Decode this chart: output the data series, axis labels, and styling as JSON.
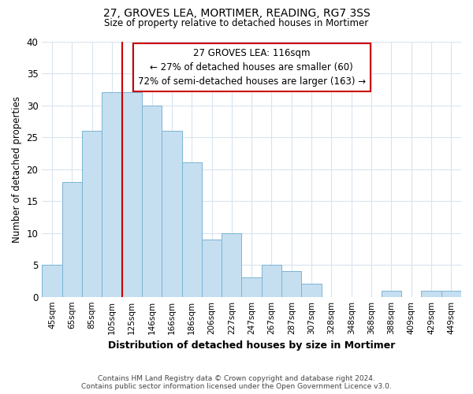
{
  "title": "27, GROVES LEA, MORTIMER, READING, RG7 3SS",
  "subtitle": "Size of property relative to detached houses in Mortimer",
  "xlabel": "Distribution of detached houses by size in Mortimer",
  "ylabel": "Number of detached properties",
  "bar_color": "#c5dff0",
  "bar_edge_color": "#7ab4d4",
  "categories": [
    "45sqm",
    "65sqm",
    "85sqm",
    "105sqm",
    "125sqm",
    "146sqm",
    "166sqm",
    "186sqm",
    "206sqm",
    "227sqm",
    "247sqm",
    "267sqm",
    "287sqm",
    "307sqm",
    "328sqm",
    "348sqm",
    "368sqm",
    "388sqm",
    "409sqm",
    "429sqm",
    "449sqm"
  ],
  "values": [
    5,
    18,
    26,
    32,
    32,
    30,
    26,
    21,
    9,
    10,
    3,
    5,
    4,
    2,
    0,
    0,
    0,
    1,
    0,
    1,
    1
  ],
  "ylim": [
    0,
    40
  ],
  "yticks": [
    0,
    5,
    10,
    15,
    20,
    25,
    30,
    35,
    40
  ],
  "vline_x_idx": 3.5,
  "vline_color": "#cc0000",
  "annotation_line1": "27 GROVES LEA: 116sqm",
  "annotation_line2": "← 27% of detached houses are smaller (60)",
  "annotation_line3": "72% of semi-detached houses are larger (163) →",
  "annotation_box_color": "#ffffff",
  "annotation_box_edge_color": "#cc0000",
  "footer_line1": "Contains HM Land Registry data © Crown copyright and database right 2024.",
  "footer_line2": "Contains public sector information licensed under the Open Government Licence v3.0.",
  "background_color": "#ffffff",
  "grid_color": "#d8e4ef"
}
